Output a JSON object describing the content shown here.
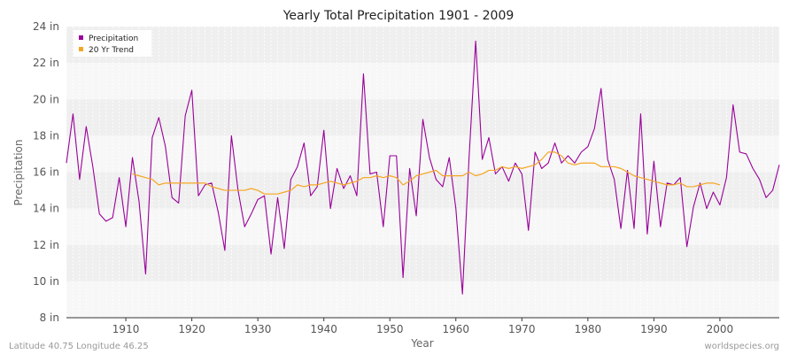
{
  "chart_data": {
    "type": "line",
    "title": "Yearly Total Precipitation 1901 - 2009",
    "xlabel": "Year",
    "ylabel": "Precipitation",
    "xlim": [
      1901,
      2009
    ],
    "ylim": [
      8,
      24
    ],
    "x_ticks": [
      1910,
      1920,
      1930,
      1940,
      1950,
      1960,
      1970,
      1980,
      1990,
      2000
    ],
    "y_ticks": [
      8,
      10,
      12,
      14,
      16,
      18,
      20,
      22,
      24
    ],
    "y_tick_labels": [
      "8 in",
      "10 in",
      "12 in",
      "14 in",
      "16 in",
      "18 in",
      "20 in",
      "22 in",
      "24 in"
    ],
    "grid": true,
    "legend_position": "top-left",
    "series": [
      {
        "name": "Precipitation",
        "color": "#990099",
        "x_start": 1901,
        "values": [
          16.5,
          19.2,
          15.6,
          18.5,
          16.3,
          13.7,
          13.3,
          13.5,
          15.7,
          13.0,
          16.8,
          14.4,
          10.4,
          17.9,
          19.0,
          17.4,
          14.6,
          14.3,
          19.1,
          20.5,
          14.7,
          15.3,
          15.4,
          13.8,
          11.7,
          18.0,
          15.0,
          13.0,
          13.7,
          14.5,
          14.7,
          11.5,
          14.6,
          11.8,
          15.6,
          16.3,
          17.6,
          14.7,
          15.2,
          18.3,
          14.0,
          16.2,
          15.1,
          15.8,
          14.7,
          21.4,
          15.9,
          16.0,
          13.0,
          16.9,
          16.9,
          10.2,
          16.2,
          13.6,
          18.9,
          16.8,
          15.6,
          15.2,
          16.8,
          14.0,
          9.3,
          16.8,
          23.2,
          16.7,
          17.9,
          15.9,
          16.3,
          15.5,
          16.5,
          15.9,
          12.8,
          17.1,
          16.2,
          16.5,
          17.6,
          16.5,
          16.9,
          16.5,
          17.1,
          17.4,
          18.4,
          20.6,
          16.7,
          15.6,
          12.9,
          16.1,
          12.9,
          19.2,
          12.6,
          16.6,
          13.0,
          15.4,
          15.3,
          15.7,
          11.9,
          14.1,
          15.4,
          14.0,
          14.9,
          14.2,
          15.7,
          19.7,
          17.1,
          17.0,
          16.2,
          15.6,
          14.6,
          15.0,
          16.4
        ]
      },
      {
        "name": "20 Yr Trend",
        "color": "#f5a623",
        "x_start": 1911,
        "values": [
          15.9,
          15.8,
          15.7,
          15.6,
          15.3,
          15.4,
          15.4,
          15.4,
          15.4,
          15.4,
          15.4,
          15.4,
          15.2,
          15.1,
          15.0,
          15.0,
          15.0,
          15.0,
          15.1,
          15.0,
          14.8,
          14.8,
          14.8,
          14.9,
          15.0,
          15.3,
          15.2,
          15.3,
          15.3,
          15.4,
          15.5,
          15.4,
          15.3,
          15.4,
          15.5,
          15.7,
          15.7,
          15.8,
          15.7,
          15.8,
          15.7,
          15.3,
          15.5,
          15.8,
          15.9,
          16.0,
          16.1,
          15.8,
          15.8,
          15.8,
          15.8,
          16.0,
          15.8,
          15.9,
          16.1,
          16.1,
          16.3,
          16.2,
          16.3,
          16.2,
          16.3,
          16.4,
          16.7,
          17.1,
          17.1,
          16.9,
          16.5,
          16.4,
          16.5,
          16.5,
          16.5,
          16.3,
          16.3,
          16.3,
          16.2,
          16.0,
          15.8,
          15.7,
          15.6,
          15.5,
          15.4,
          15.3,
          15.3,
          15.4,
          15.2,
          15.2,
          15.3,
          15.4,
          15.4,
          15.3
        ]
      }
    ]
  },
  "footer": {
    "left": "Latitude 40.75 Longitude 46.25",
    "right": "worldspecies.org"
  }
}
